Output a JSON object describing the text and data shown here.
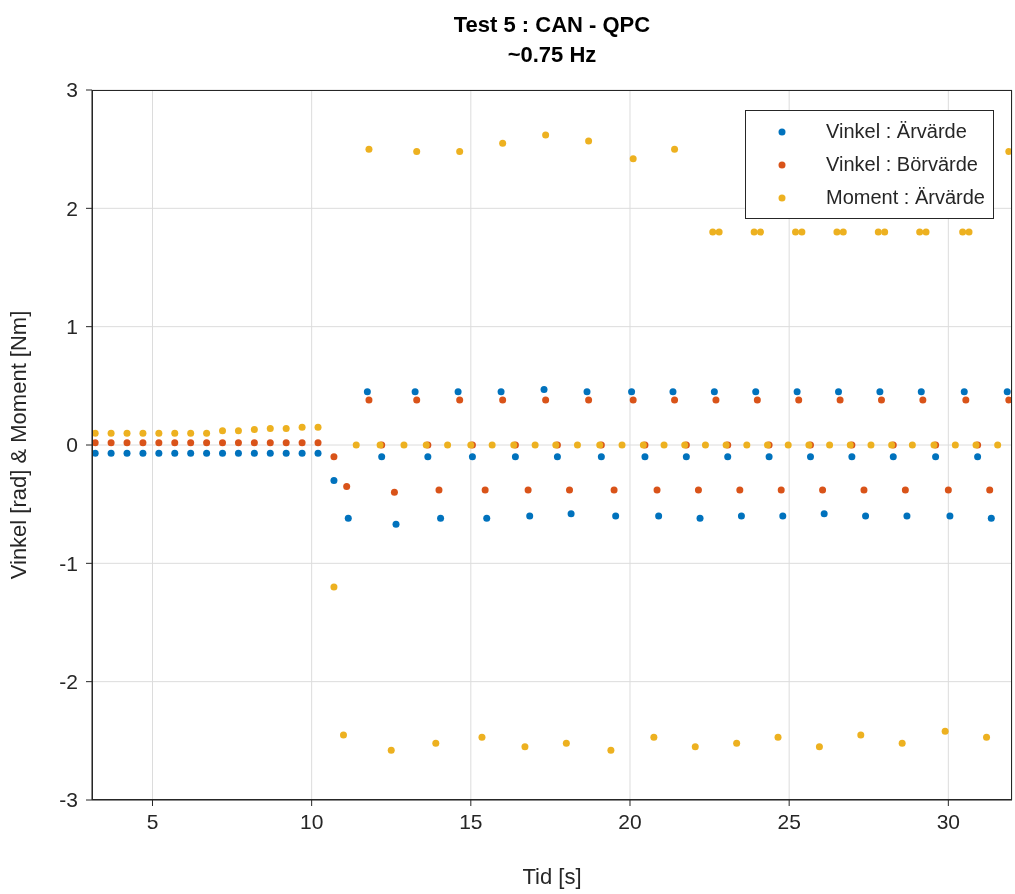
{
  "chart_data": {
    "type": "scatter",
    "title": "Test 5 : CAN - QPC",
    "subtitle": "~0.75 Hz",
    "xlabel": "Tid [s]",
    "ylabel": "Vinkel [rad] & Moment [Nm]",
    "xlim": [
      3.1,
      32
    ],
    "xticks": [
      5,
      10,
      15,
      20,
      25,
      30
    ],
    "ylim": [
      -3,
      3
    ],
    "yticks": [
      -3,
      -2,
      -1,
      0,
      1,
      2,
      3
    ],
    "grid": true,
    "legend": "top right",
    "marker": "circle",
    "series": [
      {
        "name": "Vinkel : Ärvärde",
        "color": "#0072bd",
        "x": [
          3.2,
          3.7,
          4.2,
          4.7,
          5.2,
          5.7,
          6.2,
          6.7,
          7.2,
          7.7,
          8.2,
          8.7,
          9.2,
          9.7,
          10.2,
          10.7,
          11.15,
          11.75,
          12.2,
          12.65,
          13.25,
          13.65,
          14.05,
          14.6,
          15.05,
          15.5,
          15.95,
          16.4,
          16.85,
          17.3,
          17.72,
          18.15,
          18.65,
          19.1,
          19.55,
          20.05,
          20.47,
          20.9,
          21.35,
          21.77,
          22.2,
          22.65,
          23.07,
          23.5,
          23.95,
          24.37,
          24.8,
          25.25,
          25.67,
          26.1,
          26.55,
          26.97,
          27.4,
          27.85,
          28.27,
          28.7,
          29.15,
          29.6,
          30.05,
          30.5,
          30.92,
          31.35,
          31.85
        ],
        "values": [
          -0.07,
          -0.07,
          -0.07,
          -0.07,
          -0.07,
          -0.07,
          -0.07,
          -0.07,
          -0.07,
          -0.07,
          -0.07,
          -0.07,
          -0.07,
          -0.07,
          -0.07,
          -0.3,
          -0.62,
          0.45,
          -0.1,
          -0.67,
          0.45,
          -0.1,
          -0.62,
          0.45,
          -0.1,
          -0.62,
          0.45,
          -0.1,
          -0.6,
          0.47,
          -0.1,
          -0.58,
          0.45,
          -0.1,
          -0.6,
          0.45,
          -0.1,
          -0.6,
          0.45,
          -0.1,
          -0.62,
          0.45,
          -0.1,
          -0.6,
          0.45,
          -0.1,
          -0.6,
          0.45,
          -0.1,
          -0.58,
          0.45,
          -0.1,
          -0.6,
          0.45,
          -0.1,
          -0.6,
          0.45,
          -0.1,
          -0.6,
          0.45,
          -0.1,
          -0.62,
          0.45
        ]
      },
      {
        "name": "Vinkel : Börvärde",
        "color": "#d95319",
        "x": [
          3.2,
          3.7,
          4.2,
          4.7,
          5.2,
          5.7,
          6.2,
          6.7,
          7.2,
          7.7,
          8.2,
          8.7,
          9.2,
          9.7,
          10.2,
          10.7,
          11.1,
          11.8,
          12.2,
          12.6,
          13.3,
          13.65,
          14.0,
          14.65,
          15.05,
          15.45,
          16.0,
          16.4,
          16.8,
          17.35,
          17.72,
          18.1,
          18.7,
          19.1,
          19.5,
          20.1,
          20.47,
          20.85,
          21.4,
          21.77,
          22.15,
          22.7,
          23.07,
          23.45,
          24.0,
          24.37,
          24.75,
          25.3,
          25.67,
          26.05,
          26.6,
          26.97,
          27.35,
          27.9,
          28.27,
          28.65,
          29.2,
          29.6,
          30.0,
          30.55,
          30.92,
          31.3,
          31.9
        ],
        "values": [
          0.02,
          0.02,
          0.02,
          0.02,
          0.02,
          0.02,
          0.02,
          0.02,
          0.02,
          0.02,
          0.02,
          0.02,
          0.02,
          0.02,
          0.02,
          -0.1,
          -0.35,
          0.38,
          0,
          -0.4,
          0.38,
          0,
          -0.38,
          0.38,
          0,
          -0.38,
          0.38,
          0,
          -0.38,
          0.38,
          0,
          -0.38,
          0.38,
          0,
          -0.38,
          0.38,
          0,
          -0.38,
          0.38,
          0,
          -0.38,
          0.38,
          0,
          -0.38,
          0.38,
          0,
          -0.38,
          0.38,
          0,
          -0.38,
          0.38,
          0,
          -0.38,
          0.38,
          0,
          -0.38,
          0.38,
          0,
          -0.38,
          0.38,
          0,
          -0.38,
          0.38
        ]
      },
      {
        "name": "Moment : Ärvärde",
        "color": "#edb120",
        "x": [
          3.2,
          3.7,
          4.2,
          4.7,
          5.2,
          5.7,
          6.2,
          6.7,
          7.2,
          7.7,
          8.2,
          8.7,
          9.2,
          9.7,
          10.2,
          10.7,
          11.0,
          11.4,
          11.8,
          12.15,
          12.5,
          12.9,
          13.3,
          13.6,
          13.9,
          14.27,
          14.65,
          15.0,
          15.35,
          15.67,
          16.0,
          16.35,
          16.7,
          17.02,
          17.35,
          17.67,
          18.0,
          18.35,
          18.7,
          19.05,
          19.4,
          19.75,
          20.1,
          20.42,
          20.75,
          21.07,
          21.4,
          21.72,
          22.05,
          22.37,
          22.6,
          22.8,
          23.02,
          23.35,
          23.67,
          23.9,
          24.1,
          24.32,
          24.65,
          24.97,
          25.2,
          25.4,
          25.62,
          25.95,
          26.27,
          26.5,
          26.7,
          26.92,
          27.25,
          27.57,
          27.8,
          28.0,
          28.22,
          28.55,
          28.87,
          29.1,
          29.3,
          29.55,
          29.9,
          30.22,
          30.45,
          30.65,
          30.87,
          31.2,
          31.55,
          31.9
        ],
        "values": [
          0.1,
          0.1,
          0.1,
          0.1,
          0.1,
          0.1,
          0.1,
          0.1,
          0.12,
          0.12,
          0.13,
          0.14,
          0.14,
          0.15,
          0.15,
          -1.2,
          -2.45,
          0,
          2.5,
          0,
          -2.58,
          0,
          2.48,
          0,
          -2.52,
          0,
          2.48,
          0,
          -2.47,
          0,
          2.55,
          0,
          -2.55,
          0,
          2.62,
          0,
          -2.52,
          0,
          2.57,
          0,
          -2.58,
          0,
          2.42,
          0,
          -2.47,
          0,
          2.5,
          0,
          -2.55,
          0,
          1.8,
          1.8,
          0,
          -2.52,
          0,
          1.8,
          1.8,
          0,
          -2.47,
          0,
          1.8,
          1.8,
          0,
          -2.55,
          0,
          1.8,
          1.8,
          0,
          -2.45,
          0,
          1.8,
          1.8,
          0,
          -2.52,
          0,
          1.8,
          1.8,
          0,
          -2.42,
          0,
          1.8,
          1.8,
          0,
          -2.47,
          0,
          2.48
        ]
      }
    ]
  }
}
